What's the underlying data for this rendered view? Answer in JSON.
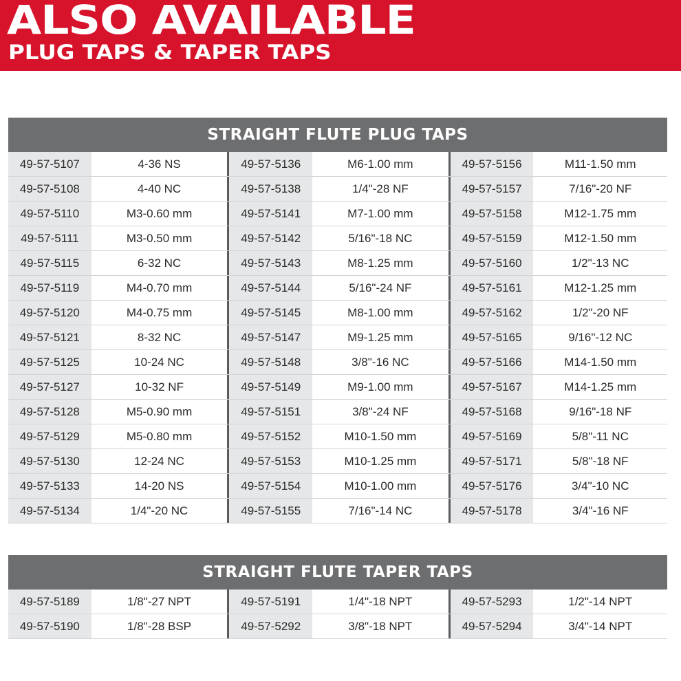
{
  "banner": {
    "title": "ALSO AVAILABLE",
    "subtitle": "PLUG TAPS & TAPER TAPS",
    "color": "#d7132b"
  },
  "tables": [
    {
      "title": "STRAIGHT FLUTE PLUG TAPS",
      "rows": [
        [
          [
            "49-57-5107",
            "4-36 NS"
          ],
          [
            "49-57-5136",
            "M6-1.00 mm"
          ],
          [
            "49-57-5156",
            "M11-1.50 mm"
          ]
        ],
        [
          [
            "49-57-5108",
            "4-40 NC"
          ],
          [
            "49-57-5138",
            "1/4\"-28 NF"
          ],
          [
            "49-57-5157",
            "7/16\"-20 NF"
          ]
        ],
        [
          [
            "49-57-5110",
            "M3-0.60 mm"
          ],
          [
            "49-57-5141",
            "M7-1.00 mm"
          ],
          [
            "49-57-5158",
            "M12-1.75 mm"
          ]
        ],
        [
          [
            "49-57-5111",
            "M3-0.50 mm"
          ],
          [
            "49-57-5142",
            "5/16\"-18 NC"
          ],
          [
            "49-57-5159",
            "M12-1.50 mm"
          ]
        ],
        [
          [
            "49-57-5115",
            "6-32 NC"
          ],
          [
            "49-57-5143",
            "M8-1.25 mm"
          ],
          [
            "49-57-5160",
            "1/2\"-13 NC"
          ]
        ],
        [
          [
            "49-57-5119",
            "M4-0.70 mm"
          ],
          [
            "49-57-5144",
            "5/16\"-24 NF"
          ],
          [
            "49-57-5161",
            "M12-1.25 mm"
          ]
        ],
        [
          [
            "49-57-5120",
            "M4-0.75 mm"
          ],
          [
            "49-57-5145",
            "M8-1.00 mm"
          ],
          [
            "49-57-5162",
            "1/2\"-20 NF"
          ]
        ],
        [
          [
            "49-57-5121",
            "8-32 NC"
          ],
          [
            "49-57-5147",
            "M9-1.25 mm"
          ],
          [
            "49-57-5165",
            "9/16\"-12 NC"
          ]
        ],
        [
          [
            "49-57-5125",
            "10-24 NC"
          ],
          [
            "49-57-5148",
            "3/8\"-16 NC"
          ],
          [
            "49-57-5166",
            "M14-1.50 mm"
          ]
        ],
        [
          [
            "49-57-5127",
            "10-32 NF"
          ],
          [
            "49-57-5149",
            "M9-1.00 mm"
          ],
          [
            "49-57-5167",
            "M14-1.25 mm"
          ]
        ],
        [
          [
            "49-57-5128",
            "M5-0.90 mm"
          ],
          [
            "49-57-5151",
            "3/8\"-24 NF"
          ],
          [
            "49-57-5168",
            "9/16\"-18 NF"
          ]
        ],
        [
          [
            "49-57-5129",
            "M5-0.80 mm"
          ],
          [
            "49-57-5152",
            "M10-1.50 mm"
          ],
          [
            "49-57-5169",
            "5/8\"-11 NC"
          ]
        ],
        [
          [
            "49-57-5130",
            "12-24 NC"
          ],
          [
            "49-57-5153",
            "M10-1.25 mm"
          ],
          [
            "49-57-5171",
            "5/8\"-18 NF"
          ]
        ],
        [
          [
            "49-57-5133",
            "14-20 NS"
          ],
          [
            "49-57-5154",
            "M10-1.00 mm"
          ],
          [
            "49-57-5176",
            "3/4\"-10 NC"
          ]
        ],
        [
          [
            "49-57-5134",
            "1/4\"-20 NC"
          ],
          [
            "49-57-5155",
            "7/16\"-14 NC"
          ],
          [
            "49-57-5178",
            "3/4\"-16 NF"
          ]
        ]
      ]
    },
    {
      "title": "STRAIGHT FLUTE TAPER TAPS",
      "rows": [
        [
          [
            "49-57-5189",
            "1/8\"-27 NPT"
          ],
          [
            "49-57-5191",
            "1/4\"-18 NPT"
          ],
          [
            "49-57-5293",
            "1/2\"-14 NPT"
          ]
        ],
        [
          [
            "49-57-5190",
            "1/8\"-28 BSP"
          ],
          [
            "49-57-5292",
            "3/8\"-18 NPT"
          ],
          [
            "49-57-5294",
            "3/4\"-14 NPT"
          ]
        ]
      ]
    }
  ]
}
